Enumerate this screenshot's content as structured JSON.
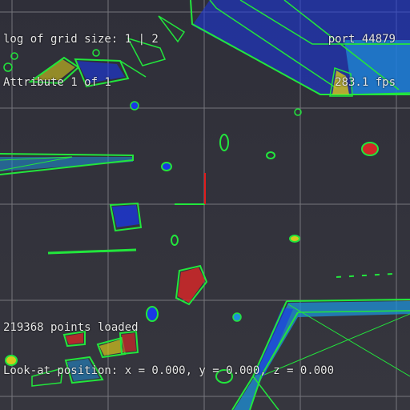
{
  "hud": {
    "grid_size": "log of grid size: 1 | 2",
    "attribute": "Attribute 1 of 1",
    "port": "port 44879",
    "fps": "283.1 fps",
    "points_loaded": "219368 points loaded",
    "look_at": "Look-at position: x = 0.000, y = 0.000, z = 0.000"
  },
  "colors": {
    "background": "#32323a",
    "grid": "#8c8c92",
    "outline": "#22e63c",
    "points_blue": "#1a37e6",
    "points_cyan": "#1e90d8",
    "points_red": "#d22828",
    "points_yellow": "#d6c81c",
    "axis_x": "#22e63c",
    "axis_y": "#e01c1c"
  }
}
